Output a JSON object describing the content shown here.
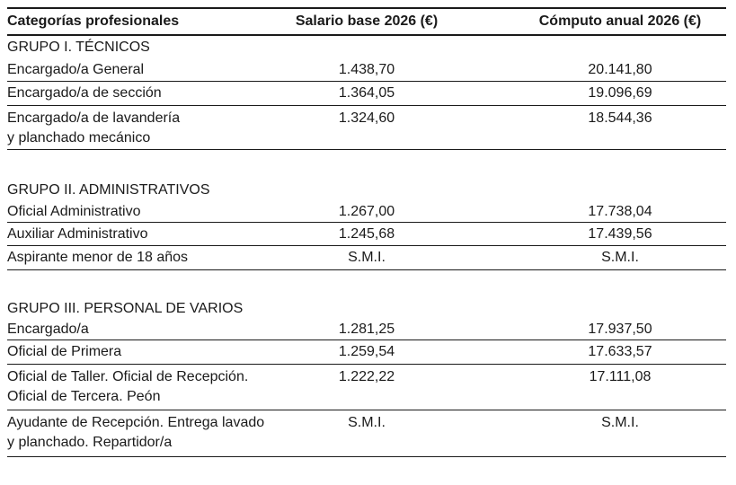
{
  "page": {
    "background_color": "#ffffff",
    "text_color": "#1a1a1a",
    "rule_color": "#1a1a1a"
  },
  "table": {
    "columns": [
      {
        "label": "Categorías profesionales"
      },
      {
        "label": "Salario base 2026 (€)"
      },
      {
        "label": "Cómputo anual 2026 (€)"
      }
    ],
    "sections": [
      {
        "title": "GRUPO I. TÉCNICOS",
        "rows": [
          {
            "category": "Encargado/a General",
            "salario_base": "1.438,70",
            "computo_anual": "20.141,80"
          },
          {
            "category": "Encargado/a de sección",
            "salario_base": "1.364,05",
            "computo_anual": "19.096,69"
          },
          {
            "category": "Encargado/a de lavandería\ny planchado mecánico",
            "salario_base": "1.324,60",
            "computo_anual": "18.544,36"
          }
        ]
      },
      {
        "title": "GRUPO II. ADMINISTRATIVOS",
        "rows": [
          {
            "category": "Oficial Administrativo",
            "salario_base": "1.267,00",
            "computo_anual": "17.738,04"
          },
          {
            "category": "Auxiliar Administrativo",
            "salario_base": "1.245,68",
            "computo_anual": "17.439,56"
          },
          {
            "category": "Aspirante menor de 18 años",
            "salario_base": "S.M.I.",
            "computo_anual": "S.M.I."
          }
        ]
      },
      {
        "title": "GRUPO III. PERSONAL DE VARIOS",
        "rows": [
          {
            "category": "Encargado/a",
            "salario_base": "1.281,25",
            "computo_anual": "17.937,50"
          },
          {
            "category": "Oficial de Primera",
            "salario_base": "1.259,54",
            "computo_anual": "17.633,57"
          },
          {
            "category": "Oficial de Taller. Oficial de Recepción.\nOficial de Tercera. Peón",
            "salario_base": "1.222,22",
            "computo_anual": "17.111,08"
          },
          {
            "category": "Ayudante de Recepción. Entrega lavado\ny planchado. Repartidor/a",
            "salario_base": "S.M.I.",
            "computo_anual": "S.M.I."
          }
        ]
      }
    ]
  }
}
